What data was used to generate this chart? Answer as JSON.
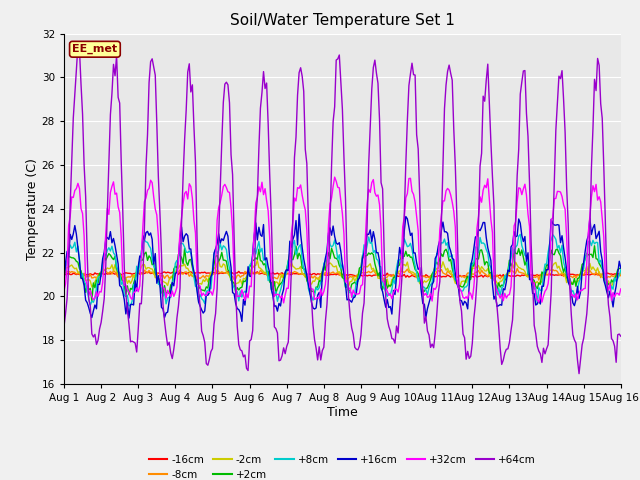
{
  "title": "Soil/Water Temperature Set 1",
  "xlabel": "Time",
  "ylabel": "Temperature (C)",
  "xlim": [
    0,
    15
  ],
  "ylim": [
    16,
    32
  ],
  "yticks": [
    16,
    18,
    20,
    22,
    24,
    26,
    28,
    30,
    32
  ],
  "xtick_labels": [
    "Aug 1",
    "Aug 2",
    "Aug 3",
    "Aug 4",
    "Aug 5",
    "Aug 6",
    "Aug 7",
    "Aug 8",
    "Aug 9",
    "Aug 10",
    "Aug 11",
    "Aug 12",
    "Aug 13",
    "Aug 14",
    "Aug 15",
    "Aug 16"
  ],
  "watermark_text": "EE_met",
  "watermark_color": "#8B0000",
  "watermark_bg": "#FFFF99",
  "series_colors": {
    "-16cm": "#FF0000",
    "-8cm": "#FF8C00",
    "-2cm": "#CCCC00",
    "+2cm": "#00BB00",
    "+8cm": "#00CCCC",
    "+16cm": "#0000CC",
    "+32cm": "#FF00FF",
    "+64cm": "#9900CC"
  },
  "background_color": "#E8E8E8",
  "grid_color": "#FFFFFF",
  "title_fontsize": 11,
  "axis_label_fontsize": 9,
  "tick_fontsize": 7.5
}
